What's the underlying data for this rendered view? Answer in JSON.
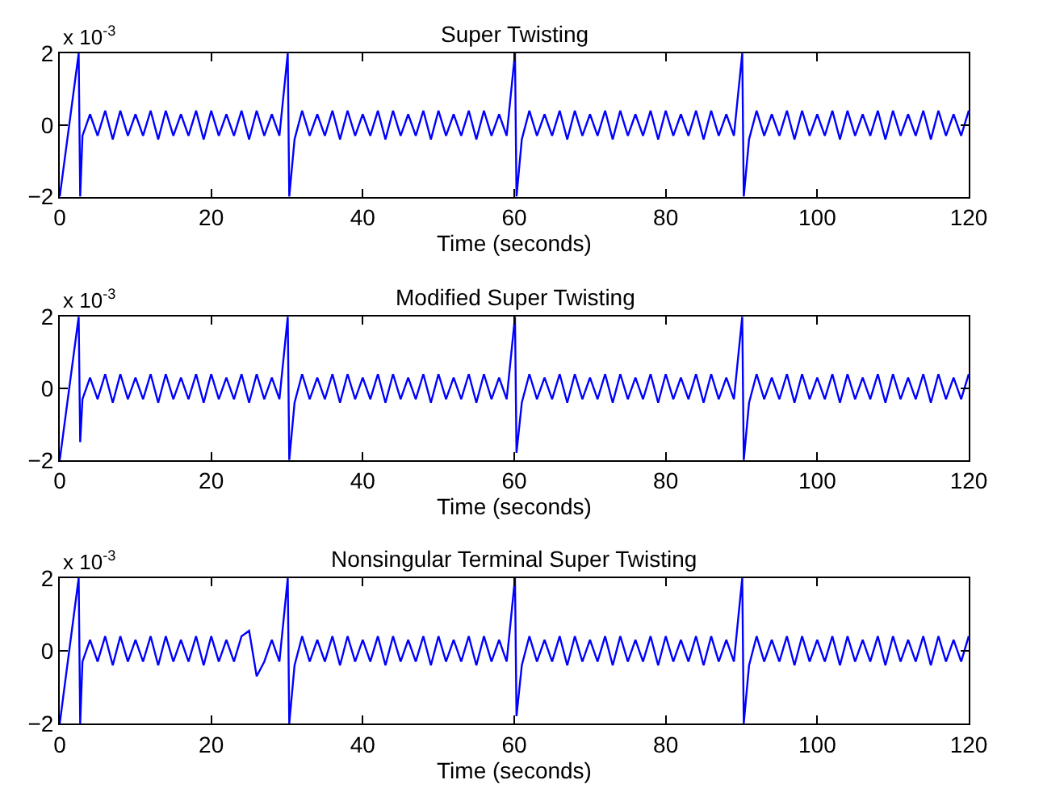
{
  "chart_data": [
    {
      "type": "line",
      "title": "Super Twisting",
      "xlabel": "Time (seconds)",
      "annotations": [
        "x 10$^{-3}$"
      ],
      "xlim": [
        0,
        120
      ],
      "xticks": [
        0,
        20,
        40,
        60,
        80,
        100,
        120
      ],
      "ylim": [
        -2,
        2
      ],
      "yticks": [
        -2,
        0,
        2
      ],
      "x": [
        0,
        2.5,
        2.7,
        3,
        4,
        5,
        6,
        7,
        8,
        9,
        10,
        11,
        12,
        13,
        14,
        15,
        16,
        17,
        18,
        19,
        20,
        21,
        22,
        23,
        24,
        25,
        26,
        27,
        28,
        29,
        30.1,
        30.3,
        31,
        32,
        33,
        34,
        35,
        36,
        37,
        38,
        39,
        40,
        41,
        42,
        43,
        44,
        45,
        46,
        47,
        48,
        49,
        50,
        51,
        52,
        53,
        54,
        55,
        56,
        57,
        58,
        59,
        60.1,
        60.3,
        61,
        62,
        63,
        64,
        65,
        66,
        67,
        68,
        69,
        70,
        71,
        72,
        73,
        74,
        75,
        76,
        77,
        78,
        79,
        80,
        81,
        82,
        83,
        84,
        85,
        86,
        87,
        88,
        89,
        90.1,
        90.3,
        91,
        92,
        93,
        94,
        95,
        96,
        97,
        98,
        99,
        100,
        101,
        102,
        103,
        104,
        105,
        106,
        107,
        108,
        109,
        110,
        111,
        112,
        113,
        114,
        115,
        116,
        117,
        118,
        119,
        120
      ],
      "series": [
        {
          "color": "#0000ff",
          "values": [
            -2,
            2,
            -2,
            -0.3,
            0.3,
            -0.3,
            0.4,
            -0.4,
            0.4,
            -0.3,
            0.3,
            -0.3,
            0.4,
            -0.4,
            0.4,
            -0.3,
            0.3,
            -0.3,
            0.4,
            -0.4,
            0.4,
            -0.3,
            0.3,
            -0.3,
            0.4,
            -0.4,
            0.4,
            -0.3,
            0.3,
            -0.3,
            2,
            -2,
            -0.4,
            0.4,
            -0.3,
            0.3,
            -0.3,
            0.4,
            -0.4,
            0.4,
            -0.3,
            0.3,
            -0.3,
            0.4,
            -0.4,
            0.4,
            -0.3,
            0.3,
            -0.3,
            0.4,
            -0.4,
            0.4,
            -0.3,
            0.3,
            -0.3,
            0.4,
            -0.4,
            0.4,
            -0.3,
            0.3,
            -0.3,
            2,
            -2,
            -0.4,
            0.4,
            -0.3,
            0.3,
            -0.3,
            0.4,
            -0.4,
            0.4,
            -0.3,
            0.3,
            -0.3,
            0.4,
            -0.4,
            0.4,
            -0.3,
            0.3,
            -0.3,
            0.4,
            -0.4,
            0.4,
            -0.3,
            0.3,
            -0.3,
            0.4,
            -0.4,
            0.4,
            -0.3,
            0.3,
            -0.3,
            2,
            -2,
            -0.4,
            0.4,
            -0.3,
            0.3,
            -0.3,
            0.4,
            -0.4,
            0.4,
            -0.3,
            0.3,
            -0.3,
            0.4,
            -0.4,
            0.4,
            -0.3,
            0.3,
            -0.3,
            0.4,
            -0.4,
            0.4,
            -0.3,
            0.3,
            -0.3,
            0.4,
            -0.4,
            0.4,
            -0.3,
            0.3,
            -0.3,
            0.4
          ]
        }
      ]
    },
    {
      "type": "line",
      "title": "Modified Super Twisting",
      "xlabel": "Time (seconds)",
      "annotations": [
        "x 10$^{-3}$"
      ],
      "xlim": [
        0,
        120
      ],
      "xticks": [
        0,
        20,
        40,
        60,
        80,
        100,
        120
      ],
      "ylim": [
        -2,
        2
      ],
      "yticks": [
        -2,
        0,
        2
      ],
      "x": [
        0,
        2.5,
        2.7,
        3,
        4,
        5,
        6,
        7,
        8,
        9,
        10,
        11,
        12,
        13,
        14,
        15,
        16,
        17,
        18,
        19,
        20,
        21,
        22,
        23,
        24,
        25,
        26,
        27,
        28,
        29,
        30.1,
        30.3,
        31,
        32,
        33,
        34,
        35,
        36,
        37,
        38,
        39,
        40,
        41,
        42,
        43,
        44,
        45,
        46,
        47,
        48,
        49,
        50,
        51,
        52,
        53,
        54,
        55,
        56,
        57,
        58,
        59,
        60.1,
        60.3,
        61,
        62,
        63,
        64,
        65,
        66,
        67,
        68,
        69,
        70,
        71,
        72,
        73,
        74,
        75,
        76,
        77,
        78,
        79,
        80,
        81,
        82,
        83,
        84,
        85,
        86,
        87,
        88,
        89,
        90.1,
        90.3,
        91,
        92,
        93,
        94,
        95,
        96,
        97,
        98,
        99,
        100,
        101,
        102,
        103,
        104,
        105,
        106,
        107,
        108,
        109,
        110,
        111,
        112,
        113,
        114,
        115,
        116,
        117,
        118,
        119,
        120
      ],
      "series": [
        {
          "color": "#0000ff",
          "values": [
            -2,
            2,
            -1.5,
            -0.3,
            0.3,
            -0.3,
            0.4,
            -0.4,
            0.4,
            -0.3,
            0.3,
            -0.3,
            0.4,
            -0.4,
            0.4,
            -0.3,
            0.3,
            -0.3,
            0.4,
            -0.4,
            0.4,
            -0.3,
            0.3,
            -0.3,
            0.4,
            -0.4,
            0.4,
            -0.3,
            0.3,
            -0.3,
            2,
            -2,
            -0.4,
            0.4,
            -0.3,
            0.3,
            -0.3,
            0.4,
            -0.4,
            0.4,
            -0.3,
            0.3,
            -0.3,
            0.4,
            -0.4,
            0.4,
            -0.3,
            0.3,
            -0.3,
            0.4,
            -0.4,
            0.4,
            -0.3,
            0.3,
            -0.3,
            0.4,
            -0.4,
            0.4,
            -0.3,
            0.3,
            -0.3,
            2,
            -1.8,
            -0.4,
            0.4,
            -0.3,
            0.3,
            -0.3,
            0.4,
            -0.4,
            0.4,
            -0.3,
            0.3,
            -0.3,
            0.4,
            -0.4,
            0.4,
            -0.3,
            0.3,
            -0.3,
            0.4,
            -0.4,
            0.4,
            -0.3,
            0.3,
            -0.3,
            0.4,
            -0.4,
            0.4,
            -0.3,
            0.3,
            -0.3,
            2,
            -2,
            -0.4,
            0.4,
            -0.3,
            0.3,
            -0.3,
            0.4,
            -0.4,
            0.4,
            -0.3,
            0.3,
            -0.3,
            0.4,
            -0.4,
            0.4,
            -0.3,
            0.3,
            -0.3,
            0.4,
            -0.4,
            0.4,
            -0.3,
            0.3,
            -0.3,
            0.4,
            -0.4,
            0.4,
            -0.3,
            0.3,
            -0.3,
            0.4
          ]
        }
      ]
    },
    {
      "type": "line",
      "title": "Nonsingular Terminal Super Twisting",
      "xlabel": "Time (seconds)",
      "annotations": [
        "x 10$^{-3}$"
      ],
      "xlim": [
        0,
        120
      ],
      "xticks": [
        0,
        20,
        40,
        60,
        80,
        100,
        120
      ],
      "ylim": [
        -2,
        2
      ],
      "yticks": [
        -2,
        0,
        2
      ],
      "x": [
        0,
        2.5,
        2.7,
        3,
        4,
        5,
        6,
        7,
        8,
        9,
        10,
        11,
        12,
        13,
        14,
        15,
        16,
        17,
        18,
        19,
        20,
        21,
        22,
        23,
        24,
        25,
        26,
        27,
        28,
        29,
        30.1,
        30.3,
        31,
        32,
        33,
        34,
        35,
        36,
        37,
        38,
        39,
        40,
        41,
        42,
        43,
        44,
        45,
        46,
        47,
        48,
        49,
        50,
        51,
        52,
        53,
        54,
        55,
        56,
        57,
        58,
        59,
        60.1,
        60.3,
        61,
        62,
        63,
        64,
        65,
        66,
        67,
        68,
        69,
        70,
        71,
        72,
        73,
        74,
        75,
        76,
        77,
        78,
        79,
        80,
        81,
        82,
        83,
        84,
        85,
        86,
        87,
        88,
        89,
        90.1,
        90.3,
        91,
        92,
        93,
        94,
        95,
        96,
        97,
        98,
        99,
        100,
        101,
        102,
        103,
        104,
        105,
        106,
        107,
        108,
        109,
        110,
        111,
        112,
        113,
        114,
        115,
        116,
        117,
        118,
        119,
        120
      ],
      "series": [
        {
          "color": "#0000ff",
          "values": [
            -2,
            2,
            -2,
            -0.3,
            0.3,
            -0.3,
            0.4,
            -0.4,
            0.4,
            -0.3,
            0.3,
            -0.3,
            0.4,
            -0.4,
            0.4,
            -0.3,
            0.3,
            -0.3,
            0.4,
            -0.4,
            0.4,
            -0.3,
            0.3,
            -0.3,
            0.4,
            0.55,
            -0.7,
            -0.3,
            0.3,
            -0.3,
            2,
            -2,
            -0.4,
            0.4,
            -0.3,
            0.3,
            -0.3,
            0.4,
            -0.4,
            0.4,
            -0.3,
            0.3,
            -0.3,
            0.4,
            -0.4,
            0.4,
            -0.3,
            0.3,
            -0.3,
            0.4,
            -0.4,
            0.4,
            -0.3,
            0.3,
            -0.3,
            0.4,
            -0.4,
            0.4,
            -0.3,
            0.3,
            -0.3,
            2,
            -1.8,
            -0.4,
            0.4,
            -0.3,
            0.3,
            -0.3,
            0.4,
            -0.4,
            0.4,
            -0.3,
            0.3,
            -0.3,
            0.4,
            -0.4,
            0.4,
            -0.3,
            0.3,
            -0.3,
            0.4,
            -0.4,
            0.4,
            -0.3,
            0.3,
            -0.3,
            0.4,
            -0.4,
            0.4,
            -0.3,
            0.3,
            -0.3,
            2,
            -2,
            -0.4,
            0.4,
            -0.3,
            0.3,
            -0.3,
            0.4,
            -0.4,
            0.4,
            -0.3,
            0.3,
            -0.3,
            0.4,
            -0.4,
            0.4,
            -0.3,
            0.3,
            -0.3,
            0.4,
            -0.4,
            0.4,
            -0.3,
            0.3,
            -0.3,
            0.4,
            -0.4,
            0.4,
            -0.3,
            0.3,
            -0.3,
            0.4
          ]
        }
      ]
    }
  ]
}
